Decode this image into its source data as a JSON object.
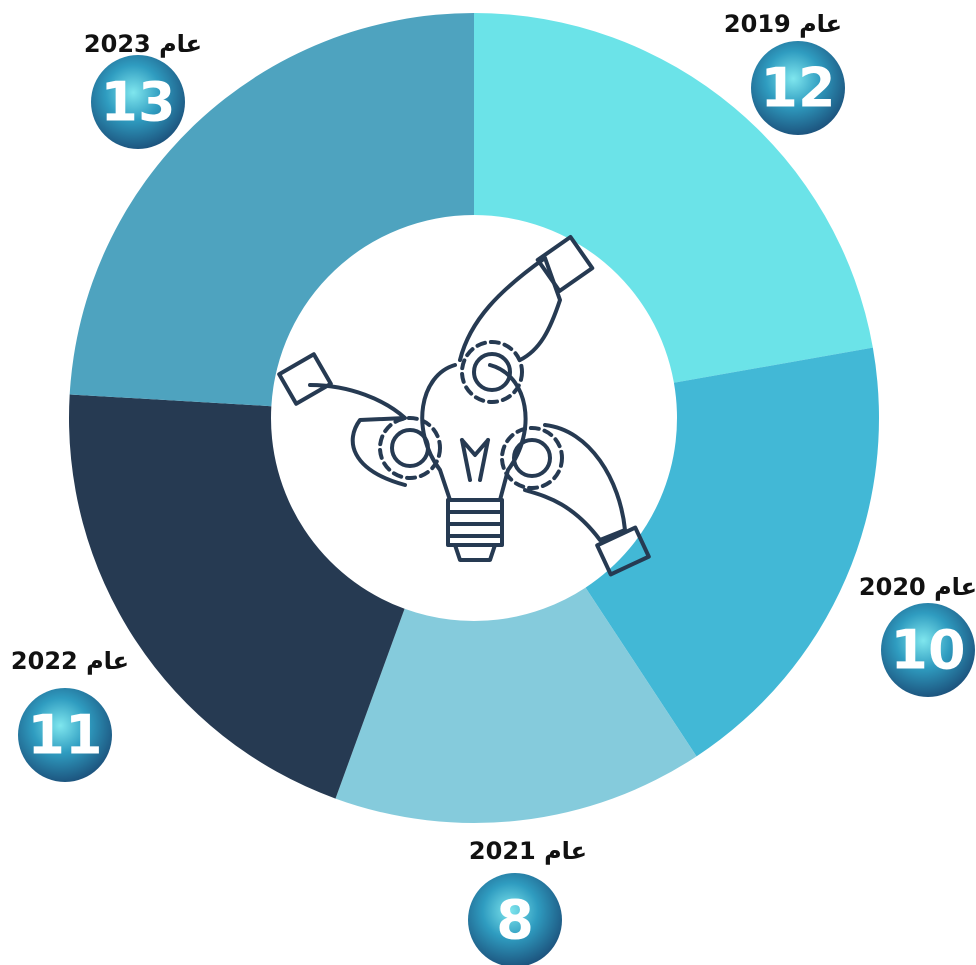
{
  "chart_data": {
    "type": "donut",
    "categories": [
      "عام 2019",
      "عام 2020",
      "عام 2021",
      "عام 2022",
      "عام 2023"
    ],
    "values": [
      12,
      10,
      8,
      11,
      13
    ],
    "colors": [
      "#6be3e8",
      "#42b8d6",
      "#85cbdc",
      "#263a52",
      "#4ea3bf"
    ]
  }
}
